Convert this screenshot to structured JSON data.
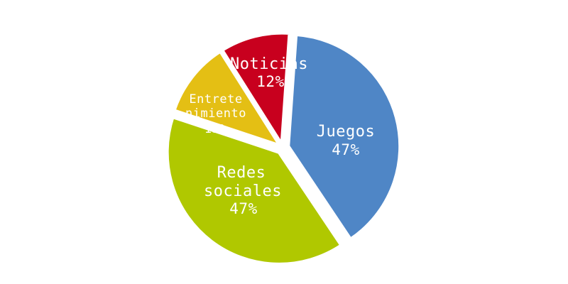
{
  "chart_data": {
    "type": "pie",
    "title": "",
    "categories": [
      "Juegos",
      "Redes sociales",
      "Entretenimiento",
      "Noticias"
    ],
    "values": [
      47,
      47,
      13,
      12
    ],
    "value_labels": [
      "47%",
      "47%",
      "13%",
      "12%"
    ],
    "colors": [
      "#4f86c6",
      "#b0c800",
      "#e4bf14",
      "#c8001e"
    ],
    "legend": "none"
  },
  "labels": {
    "juegos": {
      "name": "Juegos",
      "value": "47%"
    },
    "redes": {
      "line1": "Redes",
      "line2": "sociales",
      "value": "47%"
    },
    "entretenimiento": {
      "line1": "Entrete",
      "line2": "nimiento",
      "value": "13%"
    },
    "noticias": {
      "name": "Noticias",
      "value": "12%"
    }
  }
}
